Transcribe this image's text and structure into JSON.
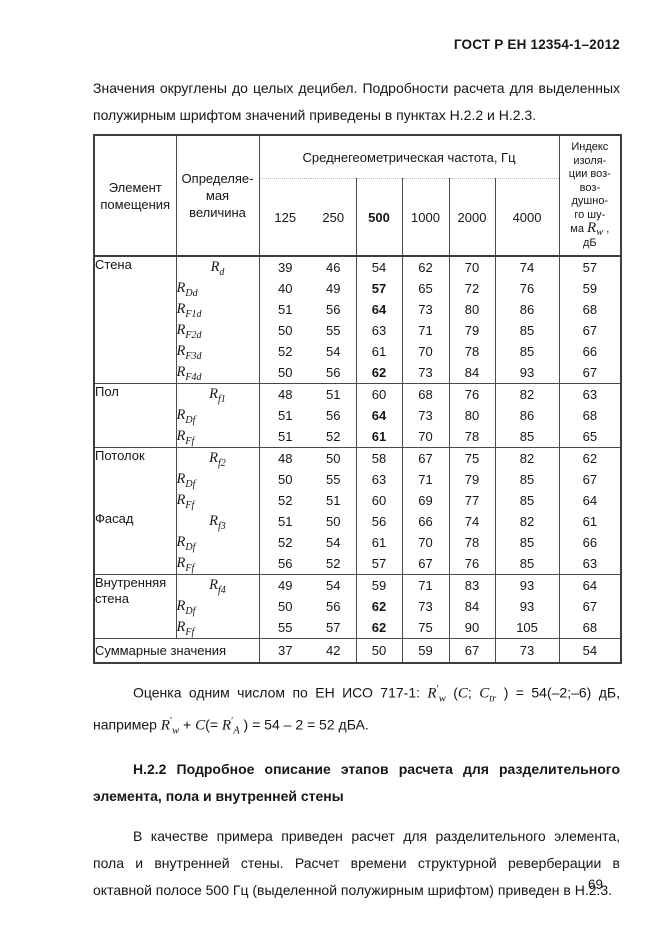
{
  "page": {
    "header": "ГОСТ Р ЕН 12354-1–2012",
    "page_number": "69"
  },
  "intro": "Значения округлены до целых децибел. Подробности расчета для выделенных полужирным шрифтом значений приведены в пунктах Н.2.2 и Н.2.3.",
  "table": {
    "element_header_lines": [
      "Элемент",
      "помещения"
    ],
    "quantity_header_lines": [
      "Определяе-",
      "мая величина"
    ],
    "freq_header": "Среднегеометрическая частота, Гц",
    "frequencies": [
      "125",
      "250",
      "500",
      "1000",
      "2000",
      "4000"
    ],
    "bold_frequency": "500",
    "index_header_lines": [
      [
        {
          "t": "Индекс"
        }
      ],
      [
        {
          "t": "изоля-"
        }
      ],
      [
        {
          "t": "ции воз-"
        }
      ],
      [
        {
          "t": "воз-"
        }
      ],
      [
        {
          "t": "душно-"
        }
      ],
      [
        {
          "t": "го шу-"
        }
      ],
      [
        {
          "t": "ма "
        },
        {
          "m": "R",
          "sub": "w"
        },
        {
          "t": " ,"
        }
      ],
      [
        {
          "t": "дБ"
        }
      ]
    ],
    "groups": [
      {
        "name": "Стена",
        "separator": false,
        "rows": [
          {
            "q": {
              "m": "R",
              "sub": "d"
            },
            "center": true,
            "values": [
              "39",
              "46",
              "54",
              "62",
              "70",
              "74",
              "57"
            ],
            "bold": []
          },
          {
            "q": {
              "m": "R",
              "sub": "Dd"
            },
            "center": false,
            "values": [
              "40",
              "49",
              "57",
              "65",
              "72",
              "76",
              "59"
            ],
            "bold": [
              2
            ]
          },
          {
            "q": {
              "m": "R",
              "sub": "F1d"
            },
            "center": false,
            "values": [
              "51",
              "56",
              "64",
              "73",
              "80",
              "86",
              "68"
            ],
            "bold": [
              2
            ]
          },
          {
            "q": {
              "m": "R",
              "sub": "F2d"
            },
            "center": false,
            "values": [
              "50",
              "55",
              "63",
              "71",
              "79",
              "85",
              "67"
            ],
            "bold": []
          },
          {
            "q": {
              "m": "R",
              "sub": "F3d"
            },
            "center": false,
            "values": [
              "52",
              "54",
              "61",
              "70",
              "78",
              "85",
              "66"
            ],
            "bold": []
          },
          {
            "q": {
              "m": "R",
              "sub": "F4d"
            },
            "center": false,
            "values": [
              "50",
              "56",
              "62",
              "73",
              "84",
              "93",
              "67"
            ],
            "bold": [
              2
            ]
          }
        ]
      },
      {
        "name": "Пол",
        "separator": true,
        "rows": [
          {
            "q": {
              "m": "R",
              "sub": "f1"
            },
            "center": true,
            "values": [
              "48",
              "51",
              "60",
              "68",
              "76",
              "82",
              "63"
            ],
            "bold": []
          },
          {
            "q": {
              "m": "R",
              "sub": "Df"
            },
            "center": false,
            "values": [
              "51",
              "56",
              "64",
              "73",
              "80",
              "86",
              "68"
            ],
            "bold": [
              2
            ]
          },
          {
            "q": {
              "m": "R",
              "sub": "Ff"
            },
            "center": false,
            "values": [
              "51",
              "52",
              "61",
              "70",
              "78",
              "85",
              "65"
            ],
            "bold": [
              2
            ]
          }
        ]
      },
      {
        "name": "Потолок",
        "separator": true,
        "rows": [
          {
            "q": {
              "m": "R",
              "sub": "f2"
            },
            "center": true,
            "values": [
              "48",
              "50",
              "58",
              "67",
              "75",
              "82",
              "62"
            ],
            "bold": []
          },
          {
            "q": {
              "m": "R",
              "sub": "Df"
            },
            "center": false,
            "values": [
              "50",
              "55",
              "63",
              "71",
              "79",
              "85",
              "67"
            ],
            "bold": []
          },
          {
            "q": {
              "m": "R",
              "sub": "Ff"
            },
            "center": false,
            "values": [
              "52",
              "51",
              "60",
              "69",
              "77",
              "85",
              "64"
            ],
            "bold": []
          }
        ]
      },
      {
        "name": "Фасад",
        "separator": false,
        "rows": [
          {
            "q": {
              "m": "R",
              "sub": "f3"
            },
            "center": true,
            "values": [
              "51",
              "50",
              "56",
              "66",
              "74",
              "82",
              "61"
            ],
            "bold": []
          },
          {
            "q": {
              "m": "R",
              "sub": "Df"
            },
            "center": false,
            "values": [
              "52",
              "54",
              "61",
              "70",
              "78",
              "85",
              "66"
            ],
            "bold": []
          },
          {
            "q": {
              "m": "R",
              "sub": "Ff"
            },
            "center": false,
            "values": [
              "56",
              "52",
              "57",
              "67",
              "76",
              "85",
              "63"
            ],
            "bold": []
          }
        ]
      },
      {
        "name": "Внутренняя стена",
        "separator": true,
        "rows": [
          {
            "q": {
              "m": "R",
              "sub": "f4"
            },
            "center": true,
            "values": [
              "49",
              "54",
              "59",
              "71",
              "83",
              "93",
              "64"
            ],
            "bold": []
          },
          {
            "q": {
              "m": "R",
              "sub": "Df"
            },
            "center": false,
            "values": [
              "50",
              "56",
              "62",
              "73",
              "84",
              "93",
              "67"
            ],
            "bold": [
              2
            ]
          },
          {
            "q": {
              "m": "R",
              "sub": "Ff"
            },
            "center": false,
            "values": [
              "55",
              "57",
              "62",
              "75",
              "90",
              "105",
              "68"
            ],
            "bold": [
              2
            ]
          }
        ]
      }
    ],
    "summary_label": "Суммарные значения",
    "summary_values": [
      "37",
      "42",
      "50",
      "59",
      "67",
      "73",
      "54"
    ]
  },
  "rating_paragraph": {
    "segments": [
      {
        "t": "Оценка одним числом по ЕН ИСО 717-1: "
      },
      {
        "m": "R",
        "prime": true,
        "sub": "w"
      },
      {
        "t": " ("
      },
      {
        "m": "C"
      },
      {
        "t": "; "
      },
      {
        "m": "C",
        "sub": "tr"
      },
      {
        "t": " ) = 54(–2;–6) дБ, например "
      },
      {
        "m": "R",
        "prime": true,
        "sub": "w"
      },
      {
        "t": " + "
      },
      {
        "m": "C"
      },
      {
        "t": "(= "
      },
      {
        "m": "R",
        "prime": true,
        "sub": "A"
      },
      {
        "t": " ) = 54 – 2 = 52 дБА."
      }
    ]
  },
  "section": {
    "heading": "Н.2.2 Подробное описание этапов расчета для разделительного элемента, пола и внутренней стены",
    "body": "В качестве примера приведен расчет для разделительного элемента, пола и внутренней стены. Расчет времени структурной реверберации в октавной полосе 500 Гц (выделенной полужирным шрифтом) приведен в Н.2.3."
  }
}
